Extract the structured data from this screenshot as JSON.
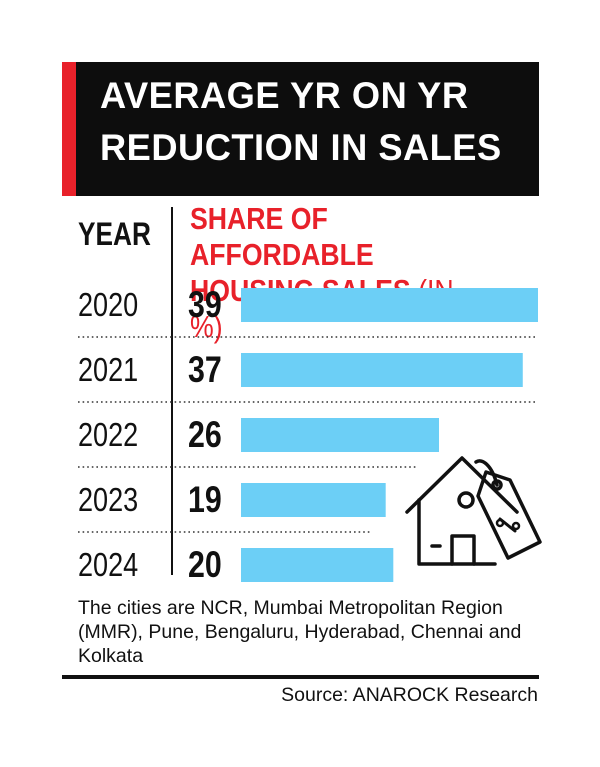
{
  "header": {
    "title": "AVERAGE YR ON YR REDUCTION IN SALES"
  },
  "columns": {
    "year": "YEAR",
    "share": "SHARE OF AFFORDABLE HOUSING SALES",
    "share_unit": "(IN %)"
  },
  "chart_data": {
    "type": "bar",
    "orientation": "horizontal",
    "title": "AVERAGE YR ON YR REDUCTION IN SALES",
    "xlabel": "SHARE OF AFFORDABLE HOUSING SALES (IN %)",
    "ylabel": "YEAR",
    "categories": [
      "2020",
      "2021",
      "2022",
      "2023",
      "2024"
    ],
    "values": [
      39,
      37,
      26,
      19,
      20
    ],
    "xlim": [
      0,
      39
    ],
    "bar_color": "#6ccff6"
  },
  "note": "The cities are NCR, Mumbai Metropolitan Region (MMR), Pune, Bengaluru, Hyderabad, Chennai and Kolkata",
  "source": "Source: ANAROCK Research",
  "icons": {
    "house_tag": "house-with-percent-tag-icon"
  },
  "colors": {
    "header_bg": "#0d0d0d",
    "accent_red": "#e8212a",
    "bar": "#6ccff6"
  }
}
